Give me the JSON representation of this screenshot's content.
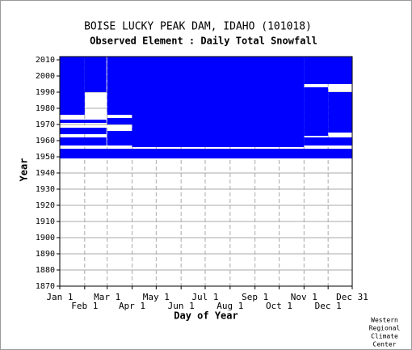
{
  "chart_data": {
    "type": "availability",
    "title": "BOISE LUCKY PEAK DAM, IDAHO   (101018)",
    "subtitle": "Observed Element : Daily Total Snowfall",
    "xlabel": "Day of Year",
    "ylabel": "Year",
    "credit": [
      "Western",
      "Regional",
      "Climate",
      "Center"
    ],
    "color": "#0000ff",
    "xlim": [
      1,
      365
    ],
    "xticks": [
      {
        "value": 1,
        "label": "Jan 1"
      },
      {
        "value": 32,
        "label": "Feb 1"
      },
      {
        "value": 60,
        "label": "Mar 1"
      },
      {
        "value": 91,
        "label": "Apr 1"
      },
      {
        "value": 121,
        "label": "May 1"
      },
      {
        "value": 152,
        "label": "Jun 1"
      },
      {
        "value": 182,
        "label": "Jul 1"
      },
      {
        "value": 213,
        "label": "Aug 1"
      },
      {
        "value": 244,
        "label": "Sep 1"
      },
      {
        "value": 274,
        "label": "Oct 1"
      },
      {
        "value": 305,
        "label": "Nov 1"
      },
      {
        "value": 335,
        "label": "Dec 1"
      },
      {
        "value": 365,
        "label": "Dec 31"
      }
    ],
    "ylim": [
      1870,
      2012
    ],
    "yticks": [
      1870,
      1880,
      1890,
      1900,
      1910,
      1920,
      1930,
      1940,
      1950,
      1960,
      1970,
      1980,
      1990,
      2000,
      2010
    ],
    "blocks": [
      {
        "days": [
          91,
          305
        ],
        "years": [
          1956,
          2012
        ]
      },
      {
        "days": [
          1,
          365
        ],
        "years": [
          1949,
          1955
        ]
      },
      {
        "days": [
          60,
          91
        ],
        "years": [
          1957,
          1966
        ]
      },
      {
        "days": [
          60,
          91
        ],
        "years": [
          1970,
          1974
        ]
      },
      {
        "days": [
          60,
          91
        ],
        "years": [
          1976,
          2012
        ]
      },
      {
        "days": [
          1,
          59
        ],
        "years": [
          1957,
          1962
        ]
      },
      {
        "days": [
          1,
          59
        ],
        "years": [
          1964,
          1968
        ]
      },
      {
        "days": [
          1,
          59
        ],
        "years": [
          1971,
          1973
        ]
      },
      {
        "days": [
          1,
          32
        ],
        "years": [
          1976,
          2012
        ]
      },
      {
        "days": [
          32,
          59
        ],
        "years": [
          1990,
          2012
        ]
      },
      {
        "days": [
          305,
          365
        ],
        "years": [
          1957,
          1962
        ]
      },
      {
        "days": [
          305,
          335
        ],
        "years": [
          1963,
          1993
        ]
      },
      {
        "days": [
          335,
          365
        ],
        "years": [
          1965,
          1990
        ]
      },
      {
        "days": [
          305,
          365
        ],
        "years": [
          1995,
          2012
        ]
      }
    ]
  }
}
